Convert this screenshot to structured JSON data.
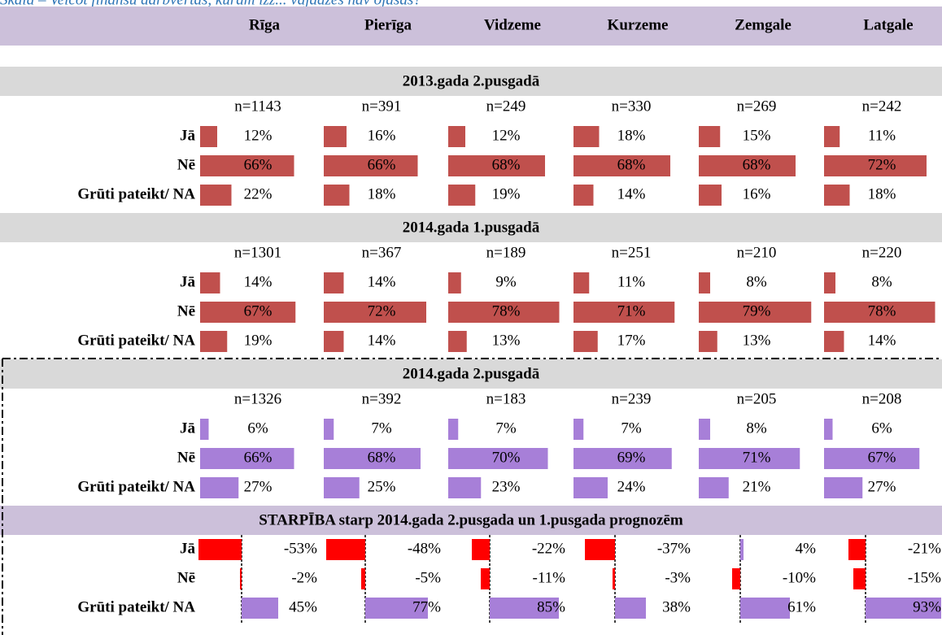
{
  "caption": "Skala – Veicot finanšu darbvērtās, kurām izz... vajadzēs nav ojāsas?",
  "columns": [
    "Rīga",
    "Pierīga",
    "Vidzeme",
    "Kurzeme",
    "Zemgale",
    "Latgale"
  ],
  "sections": [
    {
      "title": "2013.gada 2.pusgadā",
      "color": "#c0504d",
      "n": [
        "n=1143",
        "n=391",
        "n=249",
        "n=330",
        "n=269",
        "n=242"
      ],
      "rows": [
        {
          "label": "Jā",
          "values": [
            12,
            16,
            12,
            18,
            15,
            11
          ],
          "value_labels": [
            "12%",
            "16%",
            "12%",
            "18%",
            "15%",
            "11%"
          ]
        },
        {
          "label": "Nē",
          "values": [
            66,
            66,
            68,
            68,
            68,
            72
          ],
          "value_labels": [
            "66%",
            "66%",
            "68%",
            "68%",
            "68%",
            "72%"
          ]
        },
        {
          "label": "Grūti pateikt/ NA",
          "values": [
            22,
            18,
            19,
            14,
            16,
            18
          ],
          "value_labels": [
            "22%",
            "18%",
            "19%",
            "14%",
            "16%",
            "18%"
          ]
        }
      ]
    },
    {
      "title": "2014.gada 1.pusgadā",
      "color": "#c0504d",
      "n": [
        "n=1301",
        "n=367",
        "n=189",
        "n=251",
        "n=210",
        "n=220"
      ],
      "rows": [
        {
          "label": "Jā",
          "values": [
            14,
            14,
            9,
            11,
            8,
            8
          ],
          "value_labels": [
            "14%",
            "14%",
            "9%",
            "11%",
            "8%",
            "8%"
          ]
        },
        {
          "label": "Nē",
          "values": [
            67,
            72,
            78,
            71,
            79,
            78
          ],
          "value_labels": [
            "67%",
            "72%",
            "78%",
            "71%",
            "79%",
            "78%"
          ]
        },
        {
          "label": "Grūti pateikt/ NA",
          "values": [
            19,
            14,
            13,
            17,
            13,
            14
          ],
          "value_labels": [
            "19%",
            "14%",
            "13%",
            "17%",
            "13%",
            "14%"
          ]
        }
      ]
    },
    {
      "title": "2014.gada 2.pusgadā",
      "color": "#a77fd8",
      "n": [
        "n=1326",
        "n=392",
        "n=183",
        "n=239",
        "n=205",
        "n=208"
      ],
      "rows": [
        {
          "label": "Jā",
          "values": [
            6,
            7,
            7,
            7,
            8,
            6
          ],
          "value_labels": [
            "6%",
            "7%",
            "7%",
            "7%",
            "8%",
            "6%"
          ]
        },
        {
          "label": "Nē",
          "values": [
            66,
            68,
            70,
            69,
            71,
            67
          ],
          "value_labels": [
            "66%",
            "68%",
            "70%",
            "69%",
            "71%",
            "67%"
          ]
        },
        {
          "label": "Grūti pateikt/ NA",
          "values": [
            27,
            25,
            23,
            24,
            21,
            27
          ],
          "value_labels": [
            "27%",
            "25%",
            "23%",
            "24%",
            "21%",
            "27%"
          ]
        }
      ]
    },
    {
      "title": "STARPĪBA starp 2014.gada 2.pusgada un 1.pusgada prognozēm",
      "negative_color": "#ff0000",
      "positive_color": "#a77fd8",
      "rows": [
        {
          "label": "Jā",
          "values": [
            -53,
            -48,
            -22,
            -37,
            4,
            -21
          ],
          "value_labels": [
            "-53%",
            "-48%",
            "-22%",
            "-37%",
            "4%",
            "-21%"
          ]
        },
        {
          "label": "Nē",
          "values": [
            -2,
            -5,
            -11,
            -3,
            -10,
            -15
          ],
          "value_labels": [
            "-2%",
            "-5%",
            "-11%",
            "-3%",
            "-10%",
            "-15%"
          ]
        },
        {
          "label": "Grūti pateikt/ NA",
          "values": [
            45,
            77,
            85,
            38,
            61,
            93
          ],
          "value_labels": [
            "45%",
            "77%",
            "85%",
            "38%",
            "61%",
            "93%"
          ]
        }
      ]
    }
  ]
}
